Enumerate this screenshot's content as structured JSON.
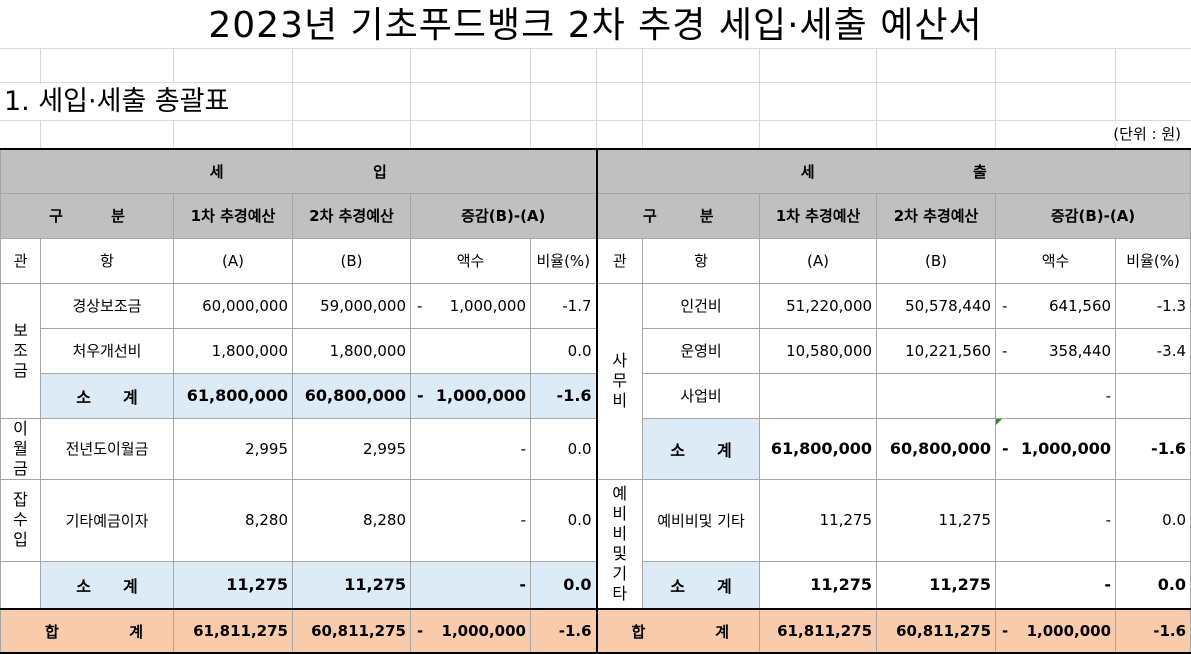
{
  "title": "2023년 기초푸드뱅크 2차 추경 세입·세출 예산서",
  "section_title": "1. 세입·세출 총괄표",
  "unit": "(단위 : 원)",
  "header": {
    "income_left": "세",
    "income_right": "입",
    "expense_left": "세",
    "expense_right": "출",
    "category_left": "구",
    "category_right": "분",
    "col_1st": "1차 추경예산",
    "col_2nd": "2차 추경예산",
    "col_diff": "증감(B)-(A)",
    "gwan": "관",
    "hang": "항",
    "a": "(A)",
    "b": "(B)",
    "amount": "액수",
    "ratio": "비율(%)"
  },
  "income": {
    "subsidy_group": [
      "보",
      "조",
      "금"
    ],
    "carryover_group": [
      "이",
      "월",
      "금"
    ],
    "misc_group": [
      "잡",
      "수",
      "입"
    ],
    "rows": {
      "r1": {
        "hang": "경상보조금",
        "a": "60,000,000",
        "b": "59,000,000",
        "minus": "-",
        "amount": "1,000,000",
        "ratio": "-1.7"
      },
      "r2": {
        "hang": "처우개선비",
        "a": "1,800,000",
        "b": "1,800,000",
        "minus": "",
        "amount": "",
        "ratio": "0.0"
      },
      "r3": {
        "hang": "소　　계",
        "a": "61,800,000",
        "b": "60,800,000",
        "minus": "-",
        "amount": "1,000,000",
        "ratio": "-1.6"
      },
      "r4": {
        "hang": "전년도이월금",
        "a": "2,995",
        "b": "2,995",
        "minus": "",
        "amount": "-",
        "ratio": "0.0"
      },
      "r5": {
        "hang": "기타예금이자",
        "a": "8,280",
        "b": "8,280",
        "minus": "",
        "amount": "-",
        "ratio": "0.0"
      },
      "r6": {
        "hang": "소　　계",
        "a": "11,275",
        "b": "11,275",
        "minus": "",
        "amount": "-",
        "ratio": "0.0"
      }
    },
    "total": {
      "label_left": "합",
      "label_right": "계",
      "a": "61,811,275",
      "b": "60,811,275",
      "minus": "-",
      "amount": "1,000,000",
      "ratio": "-1.6"
    }
  },
  "expense": {
    "office_group": [
      "사",
      "무",
      "비"
    ],
    "reserve_group": [
      "예",
      "비",
      "비",
      "및",
      "기",
      "타"
    ],
    "rows": {
      "r1": {
        "hang": "인건비",
        "a": "51,220,000",
        "b": "50,578,440",
        "minus": "-",
        "amount": "641,560",
        "ratio": "-1.3"
      },
      "r2": {
        "hang": "운영비",
        "a": "10,580,000",
        "b": "10,221,560",
        "minus": "-",
        "amount": "358,440",
        "ratio": "-3.4"
      },
      "r3": {
        "hang": "사업비",
        "a": "",
        "b": "",
        "minus": "",
        "amount": "-",
        "ratio": ""
      },
      "r4": {
        "hang": "소　　계",
        "a": "61,800,000",
        "b": "60,800,000",
        "minus": "-",
        "amount": "1,000,000",
        "ratio": "-1.6"
      },
      "r5": {
        "hang": "예비비및 기타",
        "a": "11,275",
        "b": "11,275",
        "minus": "",
        "amount": "-",
        "ratio": "0.0"
      },
      "r6": {
        "hang": "소　　계",
        "a": "11,275",
        "b": "11,275",
        "minus": "",
        "amount": "-",
        "ratio": "0.0"
      }
    },
    "total": {
      "label_left": "합",
      "label_right": "계",
      "a": "61,811,275",
      "b": "60,811,275",
      "minus": "-",
      "amount": "1,000,000",
      "ratio": "-1.6"
    }
  },
  "colors": {
    "header_gray": "#c0c0c0",
    "subtotal_blue": "#ddebf7",
    "total_peach": "#f8cbad"
  }
}
